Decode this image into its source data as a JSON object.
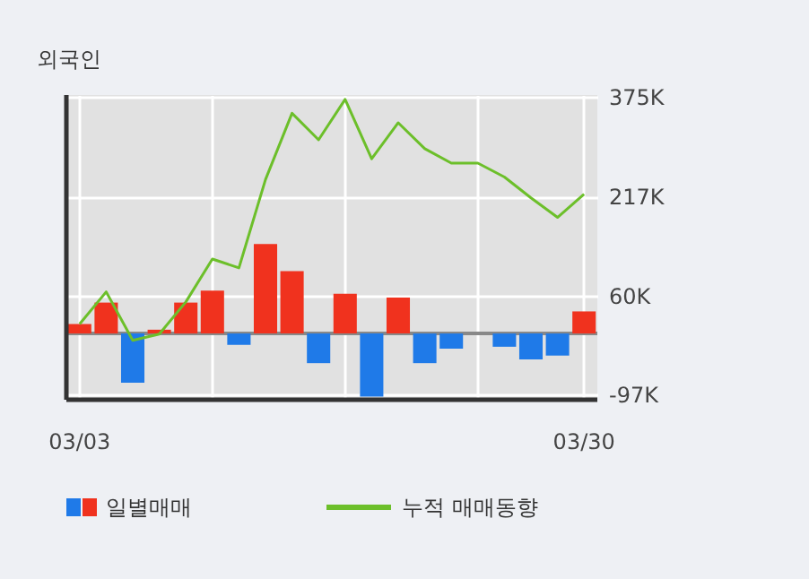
{
  "chart_data": {
    "type": "bar",
    "title": "외국인",
    "categories": [
      "03/03",
      null,
      null,
      null,
      null,
      null,
      null,
      null,
      null,
      null,
      null,
      null,
      null,
      null,
      null,
      null,
      null,
      null,
      null,
      "03/30"
    ],
    "series": [
      {
        "name": "일별매매",
        "colors": [
          "#f0321e",
          "#f0321e",
          "#1f7ae8",
          "#f0321e",
          "#f0321e",
          "#f0321e",
          "#1f7ae8",
          "#f0321e",
          "#f0321e",
          "#1f7ae8",
          "#f0321e",
          "#1f7ae8",
          "#f0321e",
          "#1f7ae8",
          "#1f7ae8",
          null,
          "#1f7ae8",
          "#1f7ae8",
          "#1f7ae8",
          "#f0321e"
        ],
        "values": [
          15,
          49,
          -78,
          6,
          49,
          68,
          -18,
          142,
          99,
          -47,
          63,
          -100,
          57,
          -47,
          -24,
          null,
          -21,
          -41,
          -35,
          35
        ]
      },
      {
        "name": "누적 매매동향",
        "type": "line",
        "color": "#6cbf2a",
        "values": [
          15,
          66,
          -11,
          -1,
          50,
          118,
          104,
          244,
          349,
          307,
          371,
          277,
          334,
          293,
          270,
          270,
          248,
          215,
          184,
          221
        ]
      }
    ],
    "ylim": [
      -105,
      378
    ],
    "yticks": [
      {
        "value": -97,
        "label": "-97K"
      },
      {
        "value": 60,
        "label": "60K"
      },
      {
        "value": 217,
        "label": "217K"
      },
      {
        "value": 375,
        "label": "375K"
      }
    ],
    "ref_lines": [
      {
        "axis": "y",
        "value": 0,
        "color": "#888888"
      }
    ],
    "grid": true,
    "legend": "bottom"
  }
}
